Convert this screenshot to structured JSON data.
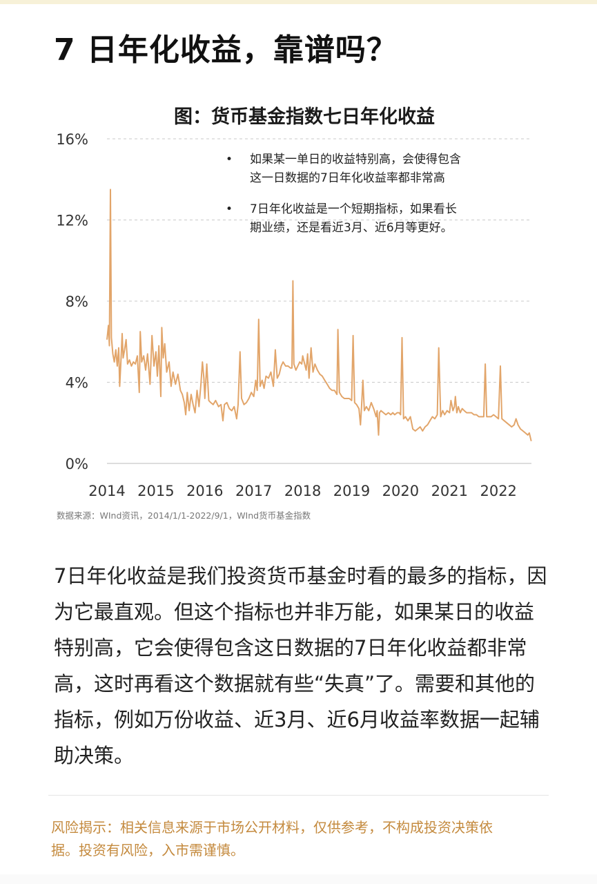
{
  "title": "7 日年化收益，靠谱吗？",
  "chart_data": {
    "type": "line",
    "title": "图：货币基金指数七日年化收益",
    "xlabel": "",
    "ylabel": "",
    "x_ticks": [
      "2014",
      "2015",
      "2016",
      "2017",
      "2018",
      "2019",
      "2020",
      "2021",
      "2022"
    ],
    "y_ticks": [
      "0%",
      "4%",
      "8%",
      "12%",
      "16%"
    ],
    "ylim": [
      0,
      16
    ],
    "xlim": [
      2014,
      2022.67
    ],
    "grid": "horizontal dashed",
    "series": [
      {
        "color": "#e2a56a",
        "points": [
          [
            2014.0,
            6.1
          ],
          [
            2014.03,
            6.8
          ],
          [
            2014.05,
            5.8
          ],
          [
            2014.07,
            13.5
          ],
          [
            2014.09,
            6.2
          ],
          [
            2014.12,
            5.4
          ],
          [
            2014.15,
            5.0
          ],
          [
            2014.18,
            5.6
          ],
          [
            2014.21,
            4.8
          ],
          [
            2014.24,
            5.7
          ],
          [
            2014.26,
            3.8
          ],
          [
            2014.29,
            5.3
          ],
          [
            2014.31,
            6.4
          ],
          [
            2014.33,
            5.2
          ],
          [
            2014.36,
            5.6
          ],
          [
            2014.39,
            6.1
          ],
          [
            2014.42,
            4.9
          ],
          [
            2014.46,
            5.1
          ],
          [
            2014.5,
            4.8
          ],
          [
            2014.54,
            5.0
          ],
          [
            2014.58,
            4.9
          ],
          [
            2014.62,
            5.3
          ],
          [
            2014.66,
            3.5
          ],
          [
            2014.68,
            6.5
          ],
          [
            2014.71,
            5.0
          ],
          [
            2014.75,
            5.3
          ],
          [
            2014.79,
            4.6
          ],
          [
            2014.83,
            5.4
          ],
          [
            2014.88,
            3.9
          ],
          [
            2014.92,
            6.3
          ],
          [
            2014.96,
            4.8
          ],
          [
            2015.0,
            5.5
          ],
          [
            2015.03,
            4.3
          ],
          [
            2015.06,
            5.8
          ],
          [
            2015.1,
            3.3
          ],
          [
            2015.12,
            6.7
          ],
          [
            2015.15,
            5.2
          ],
          [
            2015.18,
            5.9
          ],
          [
            2015.22,
            4.5
          ],
          [
            2015.27,
            5.0
          ],
          [
            2015.31,
            3.8
          ],
          [
            2015.35,
            4.5
          ],
          [
            2015.4,
            3.9
          ],
          [
            2015.45,
            4.4
          ],
          [
            2015.5,
            3.6
          ],
          [
            2015.54,
            3.4
          ],
          [
            2015.58,
            3.0
          ],
          [
            2015.61,
            2.4
          ],
          [
            2015.64,
            3.5
          ],
          [
            2015.68,
            2.6
          ],
          [
            2015.72,
            3.4
          ],
          [
            2015.76,
            2.9
          ],
          [
            2015.8,
            2.5
          ],
          [
            2015.84,
            3.6
          ],
          [
            2015.88,
            2.8
          ],
          [
            2015.92,
            3.9
          ],
          [
            2015.95,
            5.0
          ],
          [
            2015.98,
            4.2
          ],
          [
            2016.0,
            3.2
          ],
          [
            2016.04,
            4.9
          ],
          [
            2016.08,
            3.1
          ],
          [
            2016.12,
            3.0
          ],
          [
            2016.17,
            2.9
          ],
          [
            2016.22,
            3.1
          ],
          [
            2016.28,
            2.8
          ],
          [
            2016.33,
            2.9
          ],
          [
            2016.37,
            2.1
          ],
          [
            2016.4,
            2.9
          ],
          [
            2016.45,
            3.0
          ],
          [
            2016.5,
            2.7
          ],
          [
            2016.55,
            2.6
          ],
          [
            2016.6,
            2.8
          ],
          [
            2016.65,
            2.2
          ],
          [
            2016.68,
            2.9
          ],
          [
            2016.72,
            5.5
          ],
          [
            2016.75,
            3.2
          ],
          [
            2016.8,
            2.9
          ],
          [
            2016.85,
            3.0
          ],
          [
            2016.9,
            3.2
          ],
          [
            2016.95,
            3.5
          ],
          [
            2017.0,
            3.3
          ],
          [
            2017.04,
            4.1
          ],
          [
            2017.07,
            3.6
          ],
          [
            2017.1,
            7.1
          ],
          [
            2017.13,
            3.8
          ],
          [
            2017.17,
            4.1
          ],
          [
            2017.21,
            3.7
          ],
          [
            2017.25,
            4.3
          ],
          [
            2017.3,
            4.2
          ],
          [
            2017.35,
            4.5
          ],
          [
            2017.4,
            3.8
          ],
          [
            2017.44,
            5.6
          ],
          [
            2017.48,
            4.2
          ],
          [
            2017.52,
            4.4
          ],
          [
            2017.56,
            4.8
          ],
          [
            2017.6,
            5.0
          ],
          [
            2017.65,
            4.8
          ],
          [
            2017.7,
            4.8
          ],
          [
            2017.75,
            4.7
          ],
          [
            2017.78,
            4.7
          ],
          [
            2017.8,
            9.0
          ],
          [
            2017.82,
            4.9
          ],
          [
            2017.86,
            4.6
          ],
          [
            2017.9,
            4.8
          ],
          [
            2017.94,
            5.0
          ],
          [
            2017.98,
            4.9
          ],
          [
            2018.0,
            5.3
          ],
          [
            2018.03,
            5.0
          ],
          [
            2018.07,
            4.6
          ],
          [
            2018.1,
            5.4
          ],
          [
            2018.13,
            4.2
          ],
          [
            2018.17,
            5.7
          ],
          [
            2018.21,
            4.5
          ],
          [
            2018.25,
            4.9
          ],
          [
            2018.3,
            4.6
          ],
          [
            2018.35,
            4.4
          ],
          [
            2018.4,
            4.3
          ],
          [
            2018.45,
            4.1
          ],
          [
            2018.5,
            3.9
          ],
          [
            2018.55,
            3.7
          ],
          [
            2018.6,
            3.6
          ],
          [
            2018.65,
            3.6
          ],
          [
            2018.7,
            3.4
          ],
          [
            2018.72,
            6.6
          ],
          [
            2018.75,
            3.5
          ],
          [
            2018.8,
            3.3
          ],
          [
            2018.85,
            3.2
          ],
          [
            2018.9,
            3.2
          ],
          [
            2018.95,
            3.2
          ],
          [
            2019.0,
            3.1
          ],
          [
            2019.03,
            6.3
          ],
          [
            2019.06,
            3.0
          ],
          [
            2019.1,
            2.9
          ],
          [
            2019.15,
            2.7
          ],
          [
            2019.18,
            1.9
          ],
          [
            2019.2,
            2.7
          ],
          [
            2019.23,
            4.1
          ],
          [
            2019.26,
            2.6
          ],
          [
            2019.3,
            2.8
          ],
          [
            2019.35,
            2.6
          ],
          [
            2019.4,
            3.0
          ],
          [
            2019.45,
            2.7
          ],
          [
            2019.5,
            2.3
          ],
          [
            2019.52,
            2.6
          ],
          [
            2019.55,
            1.4
          ],
          [
            2019.57,
            2.5
          ],
          [
            2019.6,
            2.6
          ],
          [
            2019.65,
            2.5
          ],
          [
            2019.7,
            2.4
          ],
          [
            2019.75,
            2.5
          ],
          [
            2019.8,
            2.4
          ],
          [
            2019.84,
            2.5
          ],
          [
            2019.88,
            2.4
          ],
          [
            2019.93,
            2.5
          ],
          [
            2019.97,
            2.5
          ],
          [
            2020.0,
            2.4
          ],
          [
            2020.03,
            6.2
          ],
          [
            2020.06,
            2.2
          ],
          [
            2020.1,
            2.3
          ],
          [
            2020.15,
            2.1
          ],
          [
            2020.2,
            2.3
          ],
          [
            2020.25,
            1.7
          ],
          [
            2020.3,
            1.6
          ],
          [
            2020.35,
            1.7
          ],
          [
            2020.4,
            1.8
          ],
          [
            2020.45,
            1.6
          ],
          [
            2020.5,
            1.8
          ],
          [
            2020.55,
            1.9
          ],
          [
            2020.6,
            2.1
          ],
          [
            2020.65,
            2.3
          ],
          [
            2020.7,
            2.2
          ],
          [
            2020.75,
            2.4
          ],
          [
            2020.78,
            5.7
          ],
          [
            2020.82,
            2.3
          ],
          [
            2020.86,
            2.6
          ],
          [
            2020.9,
            2.4
          ],
          [
            2020.95,
            2.6
          ],
          [
            2021.0,
            2.5
          ],
          [
            2021.03,
            3.1
          ],
          [
            2021.07,
            2.6
          ],
          [
            2021.1,
            2.8
          ],
          [
            2021.12,
            3.3
          ],
          [
            2021.15,
            2.5
          ],
          [
            2021.18,
            2.8
          ],
          [
            2021.22,
            2.5
          ],
          [
            2021.26,
            2.7
          ],
          [
            2021.3,
            2.6
          ],
          [
            2021.35,
            2.5
          ],
          [
            2021.4,
            2.5
          ],
          [
            2021.45,
            2.5
          ],
          [
            2021.5,
            2.4
          ],
          [
            2021.55,
            2.4
          ],
          [
            2021.6,
            2.3
          ],
          [
            2021.65,
            2.3
          ],
          [
            2021.7,
            2.3
          ],
          [
            2021.73,
            4.9
          ],
          [
            2021.76,
            2.3
          ],
          [
            2021.8,
            2.3
          ],
          [
            2021.85,
            2.3
          ],
          [
            2021.9,
            2.4
          ],
          [
            2021.95,
            2.3
          ],
          [
            2022.0,
            2.2
          ],
          [
            2022.04,
            4.8
          ],
          [
            2022.07,
            2.2
          ],
          [
            2022.12,
            2.1
          ],
          [
            2022.17,
            2.0
          ],
          [
            2022.22,
            1.9
          ],
          [
            2022.27,
            1.8
          ],
          [
            2022.32,
            1.9
          ],
          [
            2022.36,
            2.2
          ],
          [
            2022.4,
            1.9
          ],
          [
            2022.45,
            1.7
          ],
          [
            2022.5,
            1.6
          ],
          [
            2022.55,
            1.5
          ],
          [
            2022.6,
            1.4
          ],
          [
            2022.63,
            1.5
          ],
          [
            2022.67,
            1.1
          ]
        ]
      }
    ],
    "annotations": [
      {
        "bullet": "•",
        "lines": [
          "如果某一单日的收益特别高，会使得包含",
          "这一日数据的7日年化收益率都非常高"
        ]
      },
      {
        "bullet": "•",
        "lines": [
          "7日年化收益是一个短期指标，如果看长",
          "期业绩，还是看近3月、近6月等更好。"
        ]
      }
    ]
  },
  "source": "数据来源：WInd资讯，2014/1/1-2022/9/1，WInd货币基金指数",
  "body_text": "7日年化收益是我们投资货币基金时看的最多的指标，因为它最直观。但这个指标也并非万能，如果某日的收益特别高，它会使得包含这日数据的7日年化收益都非常高，这时再看这个数据就有些“失真”了。需要和其他的指标，例如万份收益、近3月、近6月收益率数据一起辅助决策。",
  "risk_text": "风险揭示：相关信息来源于市场公开材料，仅供参考，不构成投资决策依据。投资有风险，入市需谨慎。"
}
